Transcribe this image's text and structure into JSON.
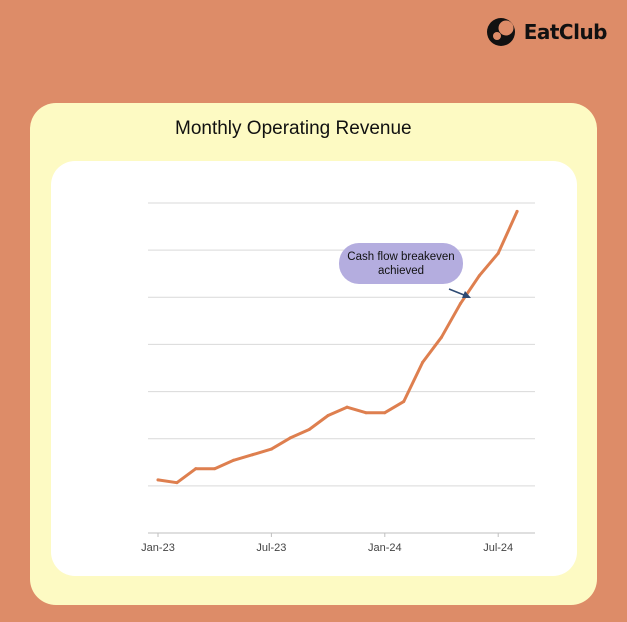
{
  "brand": {
    "name": "EatClub",
    "icon": "eatclub-logo-icon"
  },
  "colors": {
    "background": "#dd8c68",
    "card": "#fdfac3",
    "plot": "#ffffff",
    "line": "#de7f4f",
    "callout": "#b4addf",
    "arrow": "#2e4a73"
  },
  "chart_data": {
    "type": "line",
    "title": "Monthly Operating Revenue",
    "xlabel": "",
    "ylabel": "",
    "x_tick_labels": [
      "Jan-23",
      "Jul-23",
      "Jan-24",
      "Jul-24"
    ],
    "y_axis_labels_visible": false,
    "grid": true,
    "gridline_count": 7,
    "series": [
      {
        "x": [
          "2023-01",
          "2023-02",
          "2023-03",
          "2023-04",
          "2023-05",
          "2023-06",
          "2023-07",
          "2023-08",
          "2023-09",
          "2023-10",
          "2023-11",
          "2023-12",
          "2024-01",
          "2024-02",
          "2024-03",
          "2024-04",
          "2024-05",
          "2024-06",
          "2024-07",
          "2024-08"
        ],
        "values": [
          1.1,
          1.0,
          1.5,
          1.5,
          1.8,
          2.0,
          2.2,
          2.6,
          2.9,
          3.4,
          3.7,
          3.5,
          3.5,
          3.9,
          5.3,
          6.2,
          7.4,
          8.4,
          9.2,
          10.7
        ]
      }
    ],
    "annotations": [
      {
        "text": "Cash flow breakeven achieved",
        "points_to": "2024-05"
      }
    ]
  }
}
